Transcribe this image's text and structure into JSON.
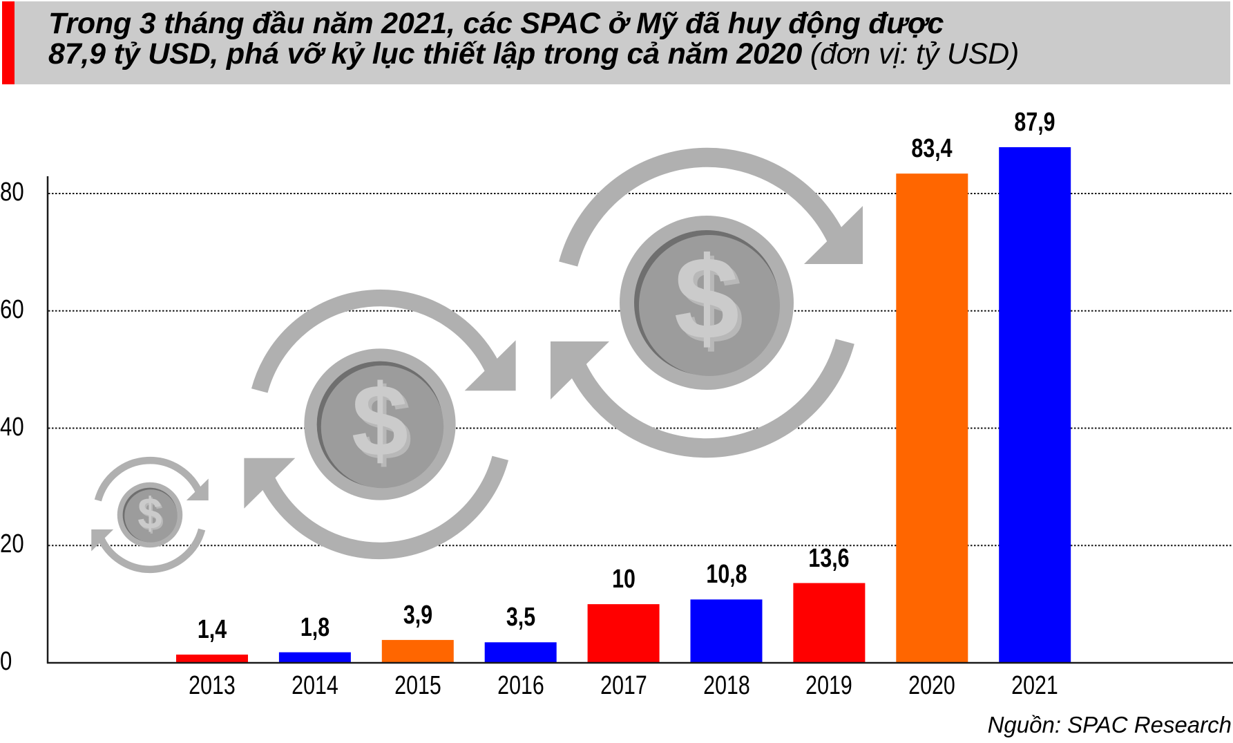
{
  "title": {
    "line1": "Trong 3 tháng đầu năm 2021, các SPAC ở Mỹ đã huy động được",
    "line2_bold": "87,9 tỷ USD, phá vỡ kỷ lục thiết lập trong cả năm 2020",
    "line2_unit": " (đơn vị: tỷ USD)",
    "accent_color": "#ff0000",
    "background_color": "#cbcbcb"
  },
  "source": "Nguồn: SPAC Research",
  "decorations": [
    "coin-exchange-icon-small",
    "coin-exchange-icon-medium",
    "coin-exchange-icon-large"
  ],
  "chart_data": {
    "type": "bar",
    "title": "Trong 3 tháng đầu năm 2021, các SPAC ở Mỹ đã huy động được 87,9 tỷ USD, phá vỡ kỷ lục thiết lập trong cả năm 2020 (đơn vị: tỷ USD)",
    "xlabel": "",
    "ylabel": "tỷ USD",
    "categories": [
      "2013",
      "2014",
      "2015",
      "2016",
      "2017",
      "2018",
      "2019",
      "2020",
      "2021"
    ],
    "values": [
      1.4,
      1.8,
      3.9,
      3.5,
      10,
      10.8,
      13.6,
      83.4,
      87.9
    ],
    "value_labels": [
      "1,4",
      "1,8",
      "3,9",
      "3,5",
      "10",
      "10,8",
      "13,6",
      "83,4",
      "87,9"
    ],
    "bar_colors": [
      "#ff0000",
      "#0000ff",
      "#ff6600",
      "#0000ff",
      "#ff0000",
      "#0000ff",
      "#ff0000",
      "#ff6600",
      "#0000ff"
    ],
    "yticks": [
      0,
      20,
      40,
      60,
      80
    ],
    "ytick_labels": [
      "0",
      "20",
      "40",
      "60",
      "80"
    ],
    "ylim": [
      0,
      90
    ],
    "grid": "horizontal dotted",
    "legend": null,
    "source": "Nguồn: SPAC Research"
  }
}
